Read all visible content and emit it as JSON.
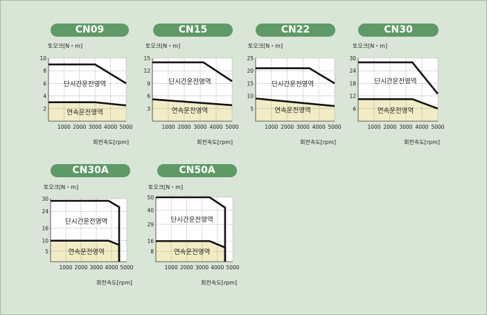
{
  "colors": {
    "background": "#d9e5d6",
    "plot_bg": "#ffffff",
    "continuous_fill": "#f1ecc4",
    "line": "#111111",
    "pill": "#5e9a66",
    "pill_text": "#ffffff"
  },
  "labels": {
    "y_axis": "토오크[N・m]",
    "x_axis": "회전속도[rpm]",
    "short_time_region": "단시간운전영역",
    "continuous_region": "연속운전영역"
  },
  "chart_data": [
    {
      "type": "line",
      "title": "CN09",
      "ylabel": "토오크[N・m]",
      "xlabel": "회전속도[rpm]",
      "xlim": [
        0,
        5000
      ],
      "ylim": [
        0,
        10
      ],
      "x_ticks": [
        1000,
        2000,
        3000,
        4000,
        5000
      ],
      "y_ticks": [
        2,
        4,
        6,
        8,
        10
      ],
      "series": [
        {
          "x": [
            0,
            3000,
            5000
          ],
          "y": [
            9,
            9,
            6
          ]
        },
        {
          "x": [
            0,
            3000,
            5000
          ],
          "y": [
            3,
            3,
            2.5
          ]
        }
      ],
      "regions": [
        "단시간운전영역",
        "연속운전영역"
      ]
    },
    {
      "type": "line",
      "title": "CN15",
      "ylabel": "토오크[N・m]",
      "xlabel": "회전속도[rpm]",
      "xlim": [
        0,
        5000
      ],
      "ylim": [
        0,
        15
      ],
      "x_ticks": [
        1000,
        2000,
        3000,
        4000,
        5000
      ],
      "y_ticks": [
        3,
        6,
        9,
        12,
        15
      ],
      "series": [
        {
          "x": [
            0,
            3200,
            5000
          ],
          "y": [
            14,
            14,
            9.5
          ]
        },
        {
          "x": [
            0,
            5000
          ],
          "y": [
            5.2,
            3.8
          ]
        }
      ],
      "regions": [
        "단시간운전영역",
        "연속운전영역"
      ]
    },
    {
      "type": "line",
      "title": "CN22",
      "ylabel": "토오크[N・m]",
      "xlabel": "회전속도[rpm]",
      "xlim": [
        0,
        5000
      ],
      "ylim": [
        0,
        25
      ],
      "x_ticks": [
        1000,
        2000,
        3000,
        4000,
        5000
      ],
      "y_ticks": [
        5,
        10,
        15,
        20,
        25
      ],
      "series": [
        {
          "x": [
            0,
            3400,
            5000
          ],
          "y": [
            21,
            21,
            15
          ]
        },
        {
          "x": [
            0,
            5000
          ],
          "y": [
            9,
            6
          ]
        }
      ],
      "regions": [
        "단시간운전영역",
        "연속운전영역"
      ]
    },
    {
      "type": "line",
      "title": "CN30",
      "ylabel": "토오크[N・m]",
      "xlabel": "회전속도[rpm]",
      "xlim": [
        0,
        5000
      ],
      "ylim": [
        0,
        30
      ],
      "x_ticks": [
        1000,
        2000,
        3000,
        4000,
        5000
      ],
      "y_ticks": [
        6,
        12,
        18,
        24,
        30
      ],
      "series": [
        {
          "x": [
            0,
            3400,
            5000
          ],
          "y": [
            28,
            28,
            13
          ]
        },
        {
          "x": [
            0,
            3400,
            5000
          ],
          "y": [
            10.5,
            10.5,
            6
          ]
        }
      ],
      "regions": [
        "단시간운전영역",
        "연속운전영역"
      ]
    },
    {
      "type": "line",
      "title": "CN30A",
      "ylabel": "토오크[N・m]",
      "xlabel": "회전속도[rpm]",
      "xlim": [
        0,
        5000
      ],
      "ylim": [
        0,
        30
      ],
      "x_ticks": [
        1000,
        2000,
        3000,
        4000,
        5000
      ],
      "y_ticks": [
        5,
        10,
        16,
        24,
        30
      ],
      "series": [
        {
          "x": [
            0,
            3800,
            4500,
            4500
          ],
          "y": [
            29,
            29,
            26,
            0
          ]
        },
        {
          "x": [
            0,
            3800,
            4500,
            4500
          ],
          "y": [
            10,
            10,
            8,
            0
          ]
        }
      ],
      "regions": [
        "단시간운전영역",
        "연속운전영역"
      ]
    },
    {
      "type": "line",
      "title": "CN50A",
      "ylabel": "토오크[N・m]",
      "xlabel": "회전속도[rpm]",
      "xlim": [
        0,
        5000
      ],
      "ylim": [
        0,
        50
      ],
      "x_ticks": [
        1000,
        2000,
        3000,
        4000,
        5000
      ],
      "y_ticks": [
        8,
        16,
        29,
        40,
        50
      ],
      "series": [
        {
          "x": [
            0,
            3500,
            4500,
            4500
          ],
          "y": [
            50,
            50,
            42,
            0
          ]
        },
        {
          "x": [
            0,
            3500,
            4500,
            4500
          ],
          "y": [
            16,
            16,
            11,
            0
          ]
        }
      ],
      "regions": [
        "단시간운전영역",
        "연속운전영역"
      ]
    }
  ]
}
